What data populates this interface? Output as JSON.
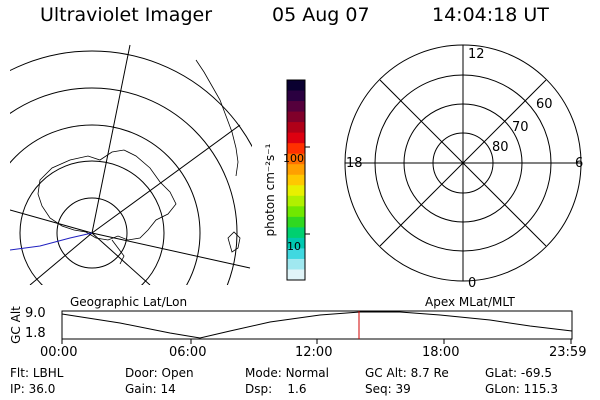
{
  "header": {
    "instrument": "Ultraviolet Imager",
    "date": "05 Aug 07",
    "time": "14:04:18 UT"
  },
  "colorbar": {
    "unit_label": "photon cm⁻²s⁻¹",
    "tick_100": "100",
    "tick_10": "10",
    "colors_top_to_bottom": [
      "#0a0030",
      "#2a0040",
      "#55003c",
      "#80002a",
      "#b00018",
      "#dd0010",
      "#ff3000",
      "#ff7000",
      "#ffa000",
      "#ffc800",
      "#e8f000",
      "#b0f000",
      "#70e800",
      "#30d820",
      "#00d070",
      "#00c8b0",
      "#40d8e0",
      "#a0e8f0",
      "#e0f4f8"
    ]
  },
  "left_map": {
    "header_label": "Geographic Lat/Lon"
  },
  "right_dial": {
    "header_label": "Apex MLat/MLT",
    "mlt_top": "12",
    "mlt_left": "18",
    "mlt_right": "6",
    "mlt_bottom": "0",
    "lat_60": "60",
    "lat_70": "70",
    "lat_80": "80"
  },
  "orbit_plot": {
    "ylabel": "GC Alt",
    "y_top": "9.0",
    "y_bottom": "1.8",
    "xticks": [
      "00:00",
      "06:00",
      "12:00",
      "18:00",
      "23:59"
    ],
    "current_time_marker": "14:04:18"
  },
  "status": {
    "flt_label": "Flt:",
    "flt_value": "LBHL",
    "ip_label": "IP:",
    "ip_value": "36.0",
    "door_label": "Door:",
    "door_value": "Open",
    "gain_label": "Gain:",
    "gain_value": "14",
    "mode_label": "Mode:",
    "mode_value": "Normal",
    "dsp_label": "Dsp:",
    "dsp_value": "1.6",
    "gcalt_label": "GC Alt:",
    "gcalt_value": "8.7 Re",
    "seq_label": "Seq:",
    "seq_value": "39",
    "glat_label": "GLat:",
    "glat_value": "-69.5",
    "glon_label": "GLon:",
    "glon_value": "115.3"
  }
}
